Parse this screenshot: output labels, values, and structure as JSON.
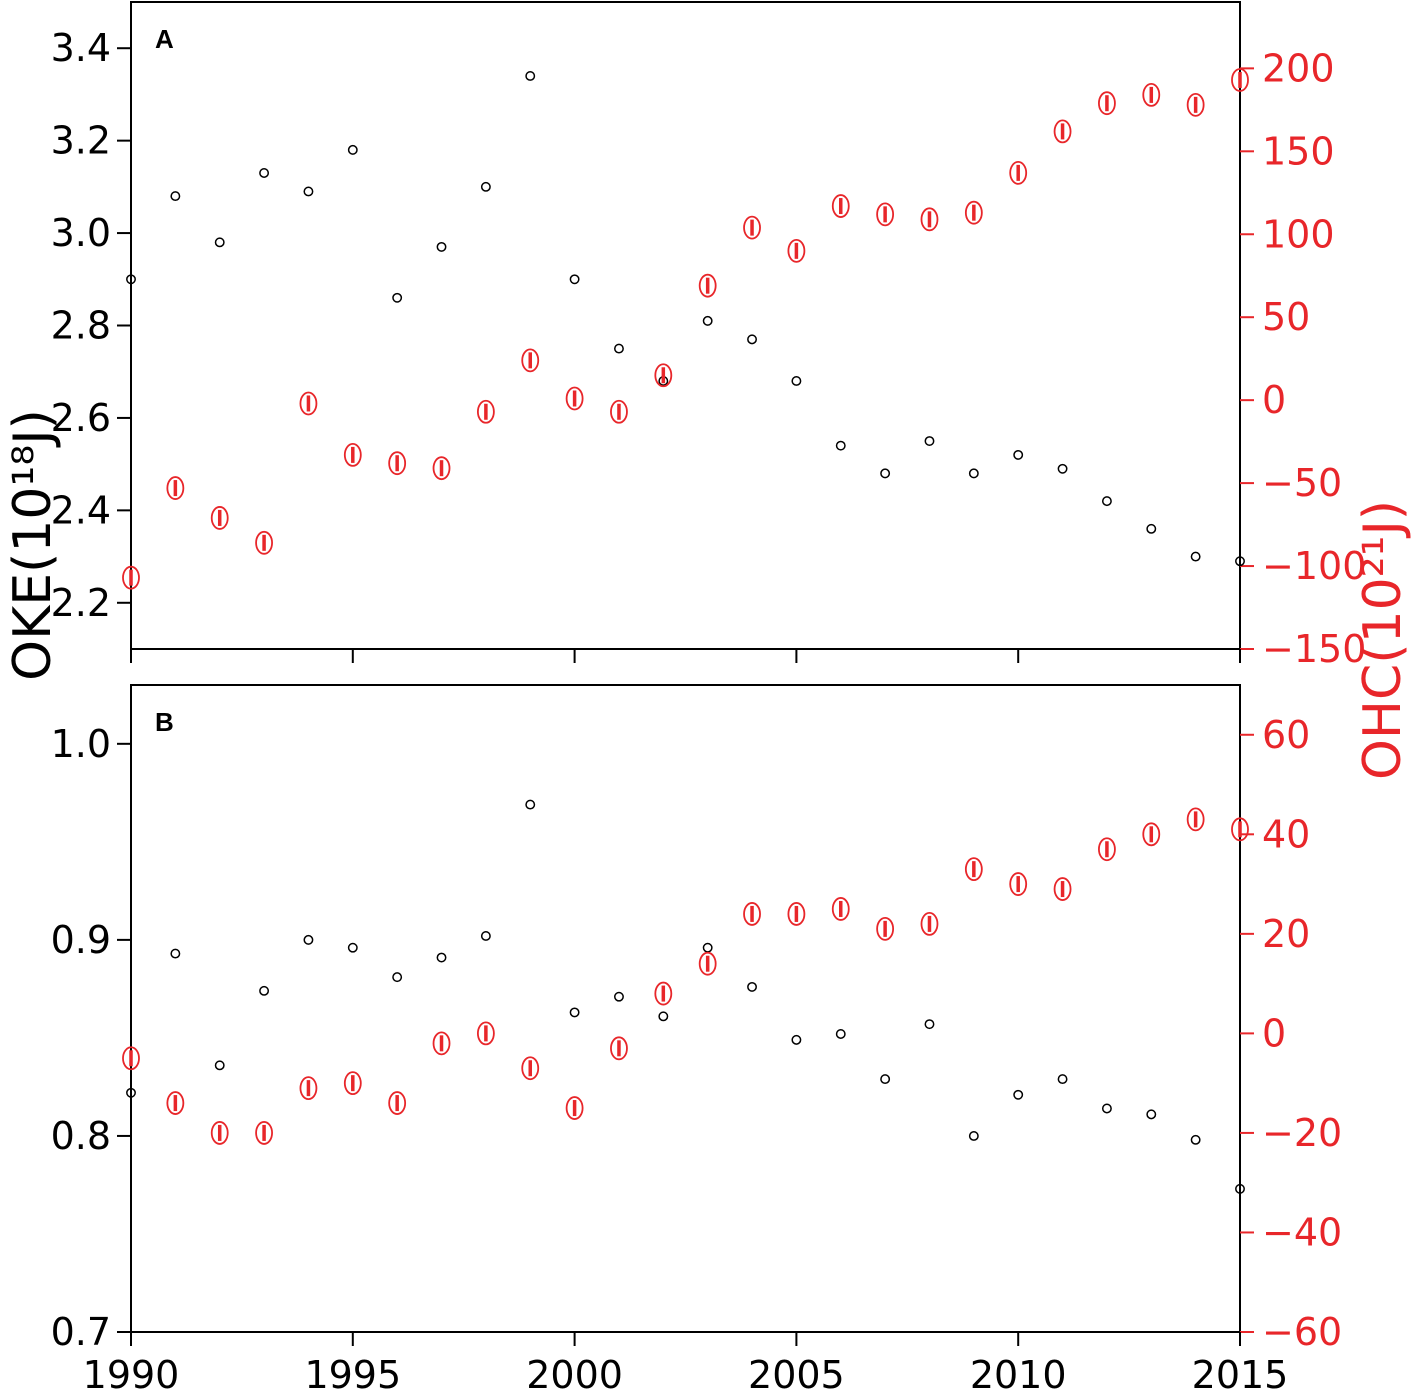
{
  "colors": {
    "okeColor": "#000000",
    "ohcColor": "#e8262a"
  },
  "axis_labels": {
    "left": "OKE(10¹⁸J)",
    "right": "OHC(10²¹J)"
  },
  "chart_data": [
    {
      "type": "scatter",
      "panel_label": "A",
      "x": [
        1990,
        1991,
        1992,
        1993,
        1994,
        1995,
        1996,
        1997,
        1998,
        1999,
        2000,
        2001,
        2002,
        2003,
        2004,
        2005,
        2006,
        2007,
        2008,
        2009,
        2010,
        2011,
        2012,
        2013,
        2014,
        2015
      ],
      "xlim": [
        1990,
        2015
      ],
      "xticks": [
        1990,
        1995,
        2000,
        2005,
        2010,
        2015
      ],
      "grid": false,
      "series": [
        {
          "axis": "left",
          "marker": "circle",
          "values": [
            2.9,
            3.08,
            2.98,
            3.13,
            3.09,
            3.18,
            2.86,
            2.97,
            3.1,
            3.34,
            2.9,
            2.75,
            2.68,
            2.81,
            2.77,
            2.68,
            2.54,
            2.48,
            2.55,
            2.48,
            2.52,
            2.49,
            2.42,
            2.36,
            2.3,
            2.29
          ]
        },
        {
          "axis": "right",
          "marker": "circle-errorbar",
          "values": [
            -107,
            -53,
            -71,
            -86,
            -2,
            -33,
            -38,
            -41,
            -7,
            24,
            1,
            -7,
            15,
            69,
            104,
            90,
            117,
            112,
            109,
            113,
            137,
            162,
            179,
            184,
            178,
            193
          ]
        }
      ],
      "ylim_left": [
        2.1,
        3.5
      ],
      "yticks_left": [
        "2.2",
        "2.4",
        "2.6",
        "2.8",
        "3.0",
        "3.2",
        "3.4"
      ],
      "ylim_right": [
        -150,
        240
      ],
      "yticks_right": [
        "−150",
        "−100",
        "−50",
        "0",
        "50",
        "100",
        "150",
        "200"
      ]
    },
    {
      "type": "scatter",
      "panel_label": "B",
      "x": [
        1990,
        1991,
        1992,
        1993,
        1994,
        1995,
        1996,
        1997,
        1998,
        1999,
        2000,
        2001,
        2002,
        2003,
        2004,
        2005,
        2006,
        2007,
        2008,
        2009,
        2010,
        2011,
        2012,
        2013,
        2014,
        2015
      ],
      "xlim": [
        1990,
        2015
      ],
      "xticks": [
        "1990",
        "1995",
        "2000",
        "2005",
        "2010",
        "2015"
      ],
      "grid": false,
      "series": [
        {
          "axis": "left",
          "marker": "circle",
          "values": [
            0.822,
            0.893,
            0.836,
            0.874,
            0.9,
            0.896,
            0.881,
            0.891,
            0.902,
            0.969,
            0.863,
            0.871,
            0.861,
            0.896,
            0.876,
            0.849,
            0.852,
            0.829,
            0.857,
            0.8,
            0.821,
            0.829,
            0.814,
            0.811,
            0.798,
            0.773
          ]
        },
        {
          "axis": "right",
          "marker": "circle-errorbar",
          "values": [
            -5,
            -14,
            -20,
            -20,
            -11,
            -10,
            -14,
            -2,
            0,
            -7,
            -15,
            -3,
            8,
            14,
            24,
            24,
            25,
            21,
            22,
            33,
            30,
            29,
            37,
            40,
            43,
            41
          ]
        }
      ],
      "ylim_left": [
        0.7,
        1.03
      ],
      "yticks_left": [
        "0.7",
        "0.8",
        "0.9",
        "1.0"
      ],
      "ylim_right": [
        -60,
        70
      ],
      "yticks_right": [
        "−60",
        "−40",
        "−20",
        "0",
        "20",
        "40",
        "60"
      ]
    }
  ]
}
